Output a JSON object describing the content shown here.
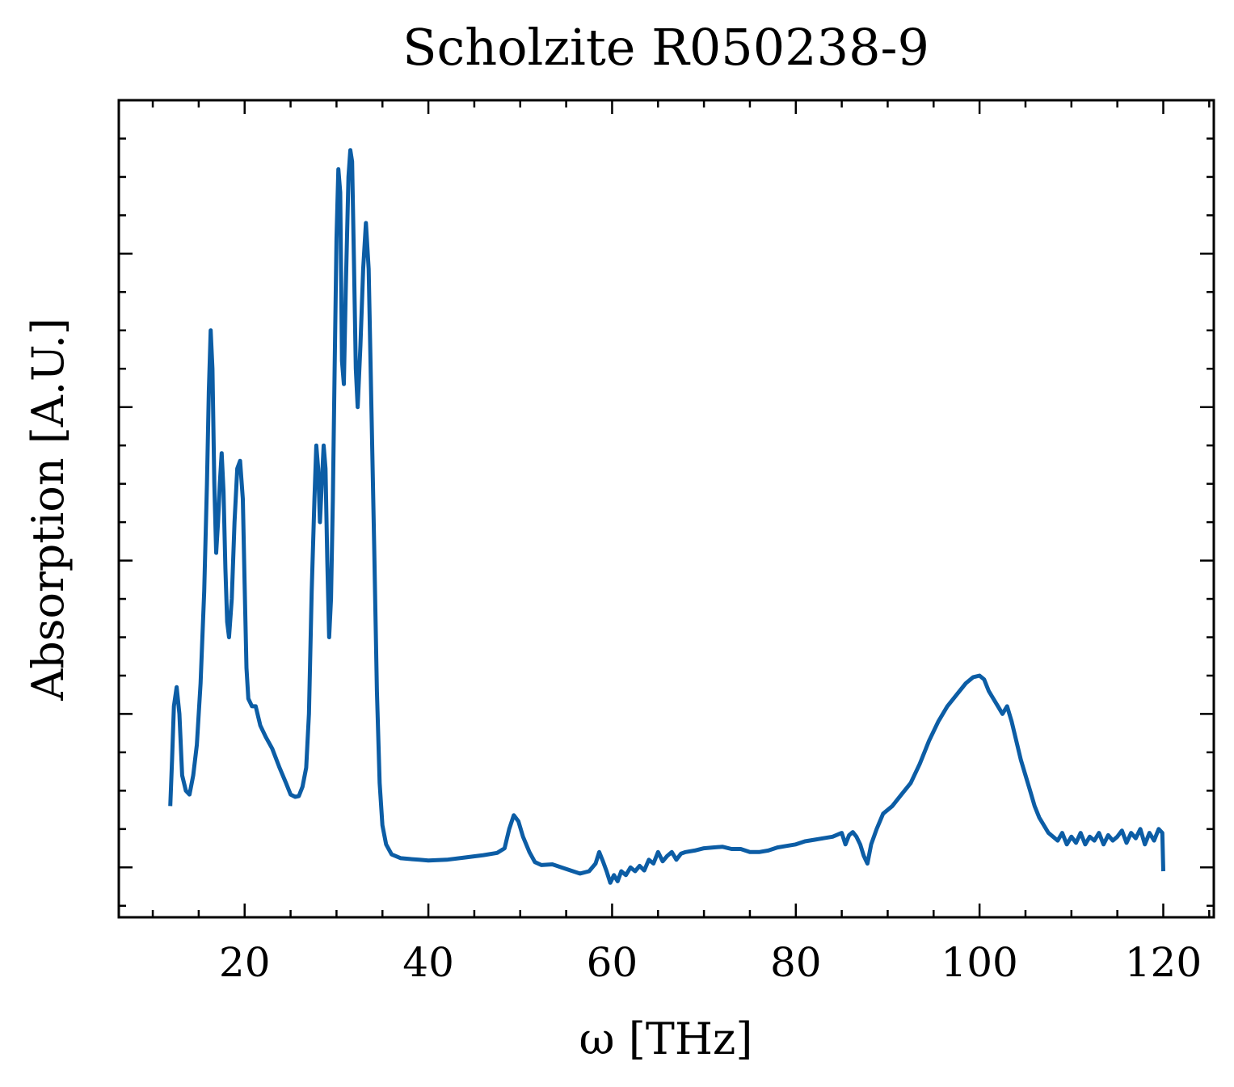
{
  "chart_data": {
    "type": "line",
    "title": "Scholzite R050238-9",
    "xlabel": "ω [THz]",
    "ylabel": "Absorption [A.U.]",
    "xlim": [
      6.3,
      125.5
    ],
    "ylim": [
      -0.065,
      1.0
    ],
    "x_ticks": [
      20,
      40,
      60,
      80,
      100,
      120
    ],
    "x_tick_labels": [
      "20",
      "40",
      "60",
      "80",
      "100",
      "120"
    ],
    "x_minor_step": 5,
    "y_major_ticks": [
      0.0,
      0.2,
      0.4,
      0.6,
      0.8
    ],
    "y_minor_step": 0.05,
    "y_tick_labels_visible": false,
    "grid": false,
    "tick_direction": "in",
    "series": [
      {
        "color": "#0c5da5",
        "points": [
          [
            11.9,
            0.08
          ],
          [
            12.1,
            0.14
          ],
          [
            12.3,
            0.21
          ],
          [
            12.6,
            0.235
          ],
          [
            12.9,
            0.2
          ],
          [
            13.2,
            0.12
          ],
          [
            13.6,
            0.1
          ],
          [
            14.0,
            0.095
          ],
          [
            14.4,
            0.12
          ],
          [
            14.8,
            0.16
          ],
          [
            15.2,
            0.24
          ],
          [
            15.6,
            0.36
          ],
          [
            15.9,
            0.5
          ],
          [
            16.1,
            0.62
          ],
          [
            16.3,
            0.7
          ],
          [
            16.5,
            0.65
          ],
          [
            16.7,
            0.5
          ],
          [
            16.9,
            0.41
          ],
          [
            17.1,
            0.45
          ],
          [
            17.3,
            0.5
          ],
          [
            17.5,
            0.54
          ],
          [
            17.7,
            0.49
          ],
          [
            17.9,
            0.39
          ],
          [
            18.1,
            0.32
          ],
          [
            18.3,
            0.3
          ],
          [
            18.6,
            0.35
          ],
          [
            18.9,
            0.45
          ],
          [
            19.2,
            0.52
          ],
          [
            19.5,
            0.53
          ],
          [
            19.8,
            0.48
          ],
          [
            20.0,
            0.37
          ],
          [
            20.2,
            0.26
          ],
          [
            20.4,
            0.22
          ],
          [
            20.8,
            0.21
          ],
          [
            21.2,
            0.21
          ],
          [
            21.7,
            0.185
          ],
          [
            22.3,
            0.17
          ],
          [
            23.0,
            0.155
          ],
          [
            23.8,
            0.13
          ],
          [
            24.5,
            0.11
          ],
          [
            25.0,
            0.095
          ],
          [
            25.5,
            0.092
          ],
          [
            25.9,
            0.093
          ],
          [
            26.3,
            0.105
          ],
          [
            26.7,
            0.13
          ],
          [
            27.0,
            0.2
          ],
          [
            27.3,
            0.36
          ],
          [
            27.6,
            0.48
          ],
          [
            27.8,
            0.55
          ],
          [
            28.0,
            0.52
          ],
          [
            28.2,
            0.45
          ],
          [
            28.4,
            0.5
          ],
          [
            28.6,
            0.55
          ],
          [
            28.8,
            0.52
          ],
          [
            29.0,
            0.4
          ],
          [
            29.2,
            0.3
          ],
          [
            29.4,
            0.35
          ],
          [
            29.6,
            0.48
          ],
          [
            29.8,
            0.65
          ],
          [
            30.0,
            0.82
          ],
          [
            30.2,
            0.91
          ],
          [
            30.4,
            0.88
          ],
          [
            30.6,
            0.66
          ],
          [
            30.8,
            0.63
          ],
          [
            31.0,
            0.75
          ],
          [
            31.3,
            0.9
          ],
          [
            31.5,
            0.935
          ],
          [
            31.7,
            0.92
          ],
          [
            31.9,
            0.79
          ],
          [
            32.1,
            0.65
          ],
          [
            32.3,
            0.6
          ],
          [
            32.6,
            0.68
          ],
          [
            32.9,
            0.78
          ],
          [
            33.2,
            0.84
          ],
          [
            33.5,
            0.78
          ],
          [
            33.8,
            0.6
          ],
          [
            34.1,
            0.42
          ],
          [
            34.4,
            0.23
          ],
          [
            34.7,
            0.11
          ],
          [
            35.0,
            0.055
          ],
          [
            35.4,
            0.03
          ],
          [
            36.0,
            0.017
          ],
          [
            37.0,
            0.012
          ],
          [
            38.0,
            0.011
          ],
          [
            39.0,
            0.01
          ],
          [
            40.0,
            0.009
          ],
          [
            42.0,
            0.01
          ],
          [
            44.0,
            0.013
          ],
          [
            46.0,
            0.016
          ],
          [
            47.5,
            0.019
          ],
          [
            48.3,
            0.025
          ],
          [
            48.8,
            0.05
          ],
          [
            49.3,
            0.068
          ],
          [
            49.8,
            0.06
          ],
          [
            50.3,
            0.04
          ],
          [
            51.0,
            0.02
          ],
          [
            51.6,
            0.007
          ],
          [
            52.3,
            0.003
          ],
          [
            53.5,
            0.004
          ],
          [
            55.0,
            -0.002
          ],
          [
            56.5,
            -0.008
          ],
          [
            57.5,
            -0.005
          ],
          [
            58.2,
            0.005
          ],
          [
            58.6,
            0.02
          ],
          [
            59.0,
            0.008
          ],
          [
            59.4,
            -0.005
          ],
          [
            59.8,
            -0.02
          ],
          [
            60.2,
            -0.01
          ],
          [
            60.6,
            -0.018
          ],
          [
            61.0,
            -0.005
          ],
          [
            61.5,
            -0.01
          ],
          [
            62.0,
            0.0
          ],
          [
            62.5,
            -0.005
          ],
          [
            63.0,
            0.002
          ],
          [
            63.5,
            -0.004
          ],
          [
            64.0,
            0.01
          ],
          [
            64.5,
            0.005
          ],
          [
            65.0,
            0.02
          ],
          [
            65.5,
            0.008
          ],
          [
            66.0,
            0.015
          ],
          [
            66.5,
            0.02
          ],
          [
            67.0,
            0.01
          ],
          [
            67.5,
            0.018
          ],
          [
            68.0,
            0.02
          ],
          [
            69.0,
            0.022
          ],
          [
            70.0,
            0.025
          ],
          [
            71.0,
            0.026
          ],
          [
            72.0,
            0.027
          ],
          [
            73.0,
            0.024
          ],
          [
            74.0,
            0.024
          ],
          [
            75.0,
            0.02
          ],
          [
            76.0,
            0.02
          ],
          [
            77.0,
            0.022
          ],
          [
            78.0,
            0.026
          ],
          [
            79.0,
            0.028
          ],
          [
            80.0,
            0.03
          ],
          [
            81.0,
            0.034
          ],
          [
            82.0,
            0.036
          ],
          [
            83.0,
            0.038
          ],
          [
            84.0,
            0.04
          ],
          [
            85.0,
            0.045
          ],
          [
            85.4,
            0.03
          ],
          [
            85.8,
            0.042
          ],
          [
            86.2,
            0.046
          ],
          [
            86.6,
            0.04
          ],
          [
            87.0,
            0.03
          ],
          [
            87.4,
            0.015
          ],
          [
            87.8,
            0.005
          ],
          [
            88.2,
            0.03
          ],
          [
            88.8,
            0.05
          ],
          [
            89.5,
            0.07
          ],
          [
            90.5,
            0.08
          ],
          [
            91.5,
            0.095
          ],
          [
            92.5,
            0.11
          ],
          [
            93.5,
            0.135
          ],
          [
            94.5,
            0.165
          ],
          [
            95.5,
            0.19
          ],
          [
            96.5,
            0.21
          ],
          [
            97.5,
            0.225
          ],
          [
            98.5,
            0.24
          ],
          [
            99.3,
            0.248
          ],
          [
            100.0,
            0.25
          ],
          [
            100.5,
            0.245
          ],
          [
            101.0,
            0.23
          ],
          [
            101.5,
            0.22
          ],
          [
            102.0,
            0.21
          ],
          [
            102.5,
            0.2
          ],
          [
            103.0,
            0.21
          ],
          [
            103.5,
            0.19
          ],
          [
            104.0,
            0.165
          ],
          [
            104.5,
            0.14
          ],
          [
            105.0,
            0.12
          ],
          [
            105.5,
            0.1
          ],
          [
            106.0,
            0.08
          ],
          [
            106.5,
            0.065
          ],
          [
            107.0,
            0.055
          ],
          [
            107.5,
            0.045
          ],
          [
            108.0,
            0.04
          ],
          [
            108.5,
            0.035
          ],
          [
            109.0,
            0.045
          ],
          [
            109.5,
            0.03
          ],
          [
            110.0,
            0.04
          ],
          [
            110.5,
            0.032
          ],
          [
            111.0,
            0.045
          ],
          [
            111.5,
            0.03
          ],
          [
            112.0,
            0.04
          ],
          [
            112.5,
            0.035
          ],
          [
            113.0,
            0.045
          ],
          [
            113.5,
            0.03
          ],
          [
            114.0,
            0.042
          ],
          [
            114.5,
            0.035
          ],
          [
            115.0,
            0.04
          ],
          [
            115.5,
            0.048
          ],
          [
            116.0,
            0.032
          ],
          [
            116.5,
            0.045
          ],
          [
            117.0,
            0.038
          ],
          [
            117.5,
            0.05
          ],
          [
            118.0,
            0.03
          ],
          [
            118.5,
            0.045
          ],
          [
            119.0,
            0.035
          ],
          [
            119.5,
            0.05
          ],
          [
            119.9,
            0.045
          ],
          [
            120.0,
            -0.005
          ]
        ]
      }
    ]
  }
}
